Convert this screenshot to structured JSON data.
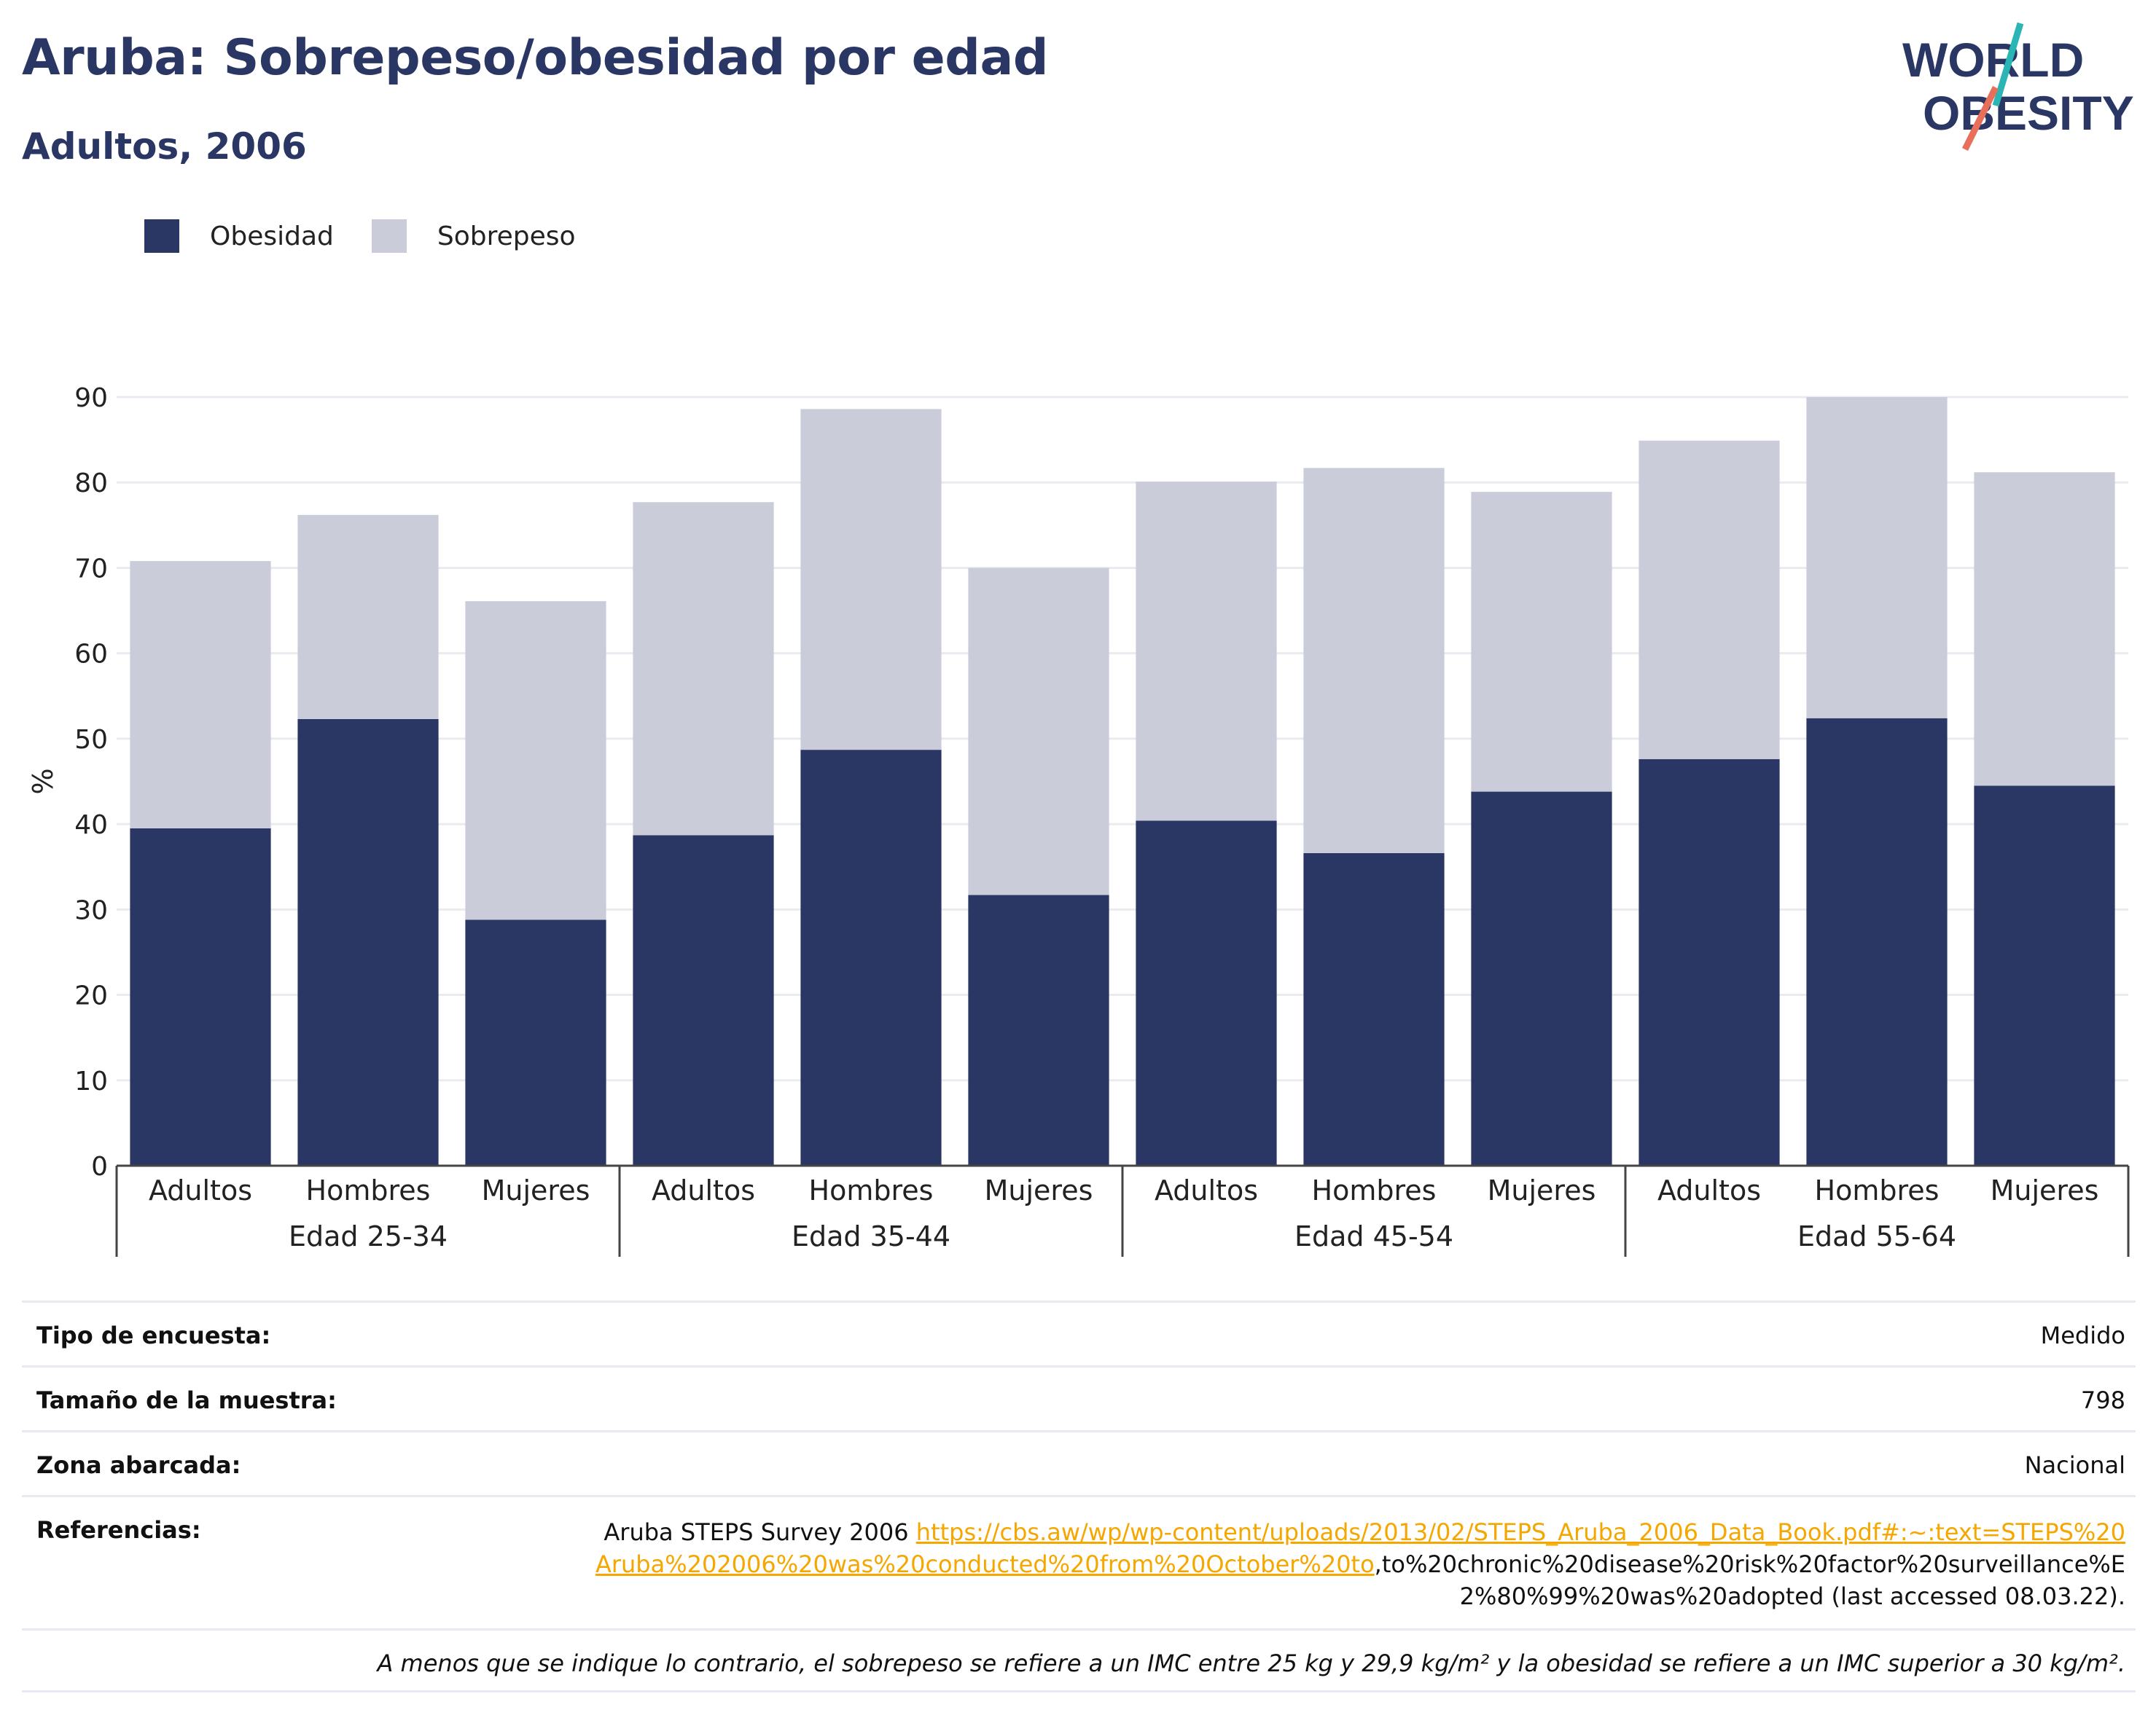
{
  "header": {
    "title": "Aruba: Sobrepeso/obesidad por edad",
    "subtitle": "Adultos, 2006"
  },
  "logo": {
    "line1": "WORLD",
    "line2": "OBESITY",
    "colors": {
      "text": "#2a3663",
      "slash_top": "#2bb5b4",
      "slash_bottom": "#e8705a"
    }
  },
  "legend": [
    {
      "label": "Obesidad",
      "color": "#2a3663"
    },
    {
      "label": "Sobrepeso",
      "color": "#cacdd9"
    }
  ],
  "chart_data": {
    "type": "bar",
    "stacked": true,
    "ylabel": "%",
    "ylim": [
      0,
      90
    ],
    "yticks": [
      0,
      10,
      20,
      30,
      40,
      50,
      60,
      70,
      80,
      90
    ],
    "grid": true,
    "legend_position": "top-left",
    "groups": [
      {
        "label": "Edad 25-34",
        "categories": [
          "Adultos",
          "Hombres",
          "Mujeres"
        ]
      },
      {
        "label": "Edad 35-44",
        "categories": [
          "Adultos",
          "Hombres",
          "Mujeres"
        ]
      },
      {
        "label": "Edad 45-54",
        "categories": [
          "Adultos",
          "Hombres",
          "Mujeres"
        ]
      },
      {
        "label": "Edad 55-64",
        "categories": [
          "Adultos",
          "Hombres",
          "Mujeres"
        ]
      }
    ],
    "categories": [
      "Adultos",
      "Hombres",
      "Mujeres",
      "Adultos",
      "Hombres",
      "Mujeres",
      "Adultos",
      "Hombres",
      "Mujeres",
      "Adultos",
      "Hombres",
      "Mujeres"
    ],
    "series": [
      {
        "name": "Obesidad",
        "color": "#2a3663",
        "values": [
          39.5,
          52.3,
          28.8,
          38.7,
          48.7,
          31.7,
          40.4,
          36.6,
          43.8,
          47.6,
          52.4,
          44.5
        ]
      },
      {
        "name": "Sobrepeso",
        "color": "#cacdd9",
        "values": [
          31.3,
          23.9,
          37.3,
          39.0,
          39.9,
          38.3,
          39.7,
          45.1,
          35.1,
          37.3,
          37.6,
          36.7
        ]
      }
    ]
  },
  "info": {
    "survey_type_label": "Tipo de encuesta:",
    "survey_type_value": "Medido",
    "sample_size_label": "Tamaño de la muestra:",
    "sample_size_value": "798",
    "area_label": "Zona abarcada:",
    "area_value": "Nacional",
    "references_label": "Referencias:",
    "references_prefix": "Aruba STEPS Survey 2006 ",
    "references_link": "https://cbs.aw/wp/wp-content/uploads/2013/02/STEPS_Aruba_2006_Data_Book.pdf#:~:text=STEPS%20Aruba%202006%20was%20conducted%20from%20October%20to",
    "references_suffix": ",to%20chronic%20disease%20risk%20factor%20surveillance%E2%80%99%20was%20adopted (last accessed 08.03.22).",
    "note": "A menos que se indique lo contrario, el sobrepeso se refiere a un IMC entre 25 kg y 29,9 kg/m² y la obesidad se refiere a un IMC superior a 30 kg/m²."
  }
}
